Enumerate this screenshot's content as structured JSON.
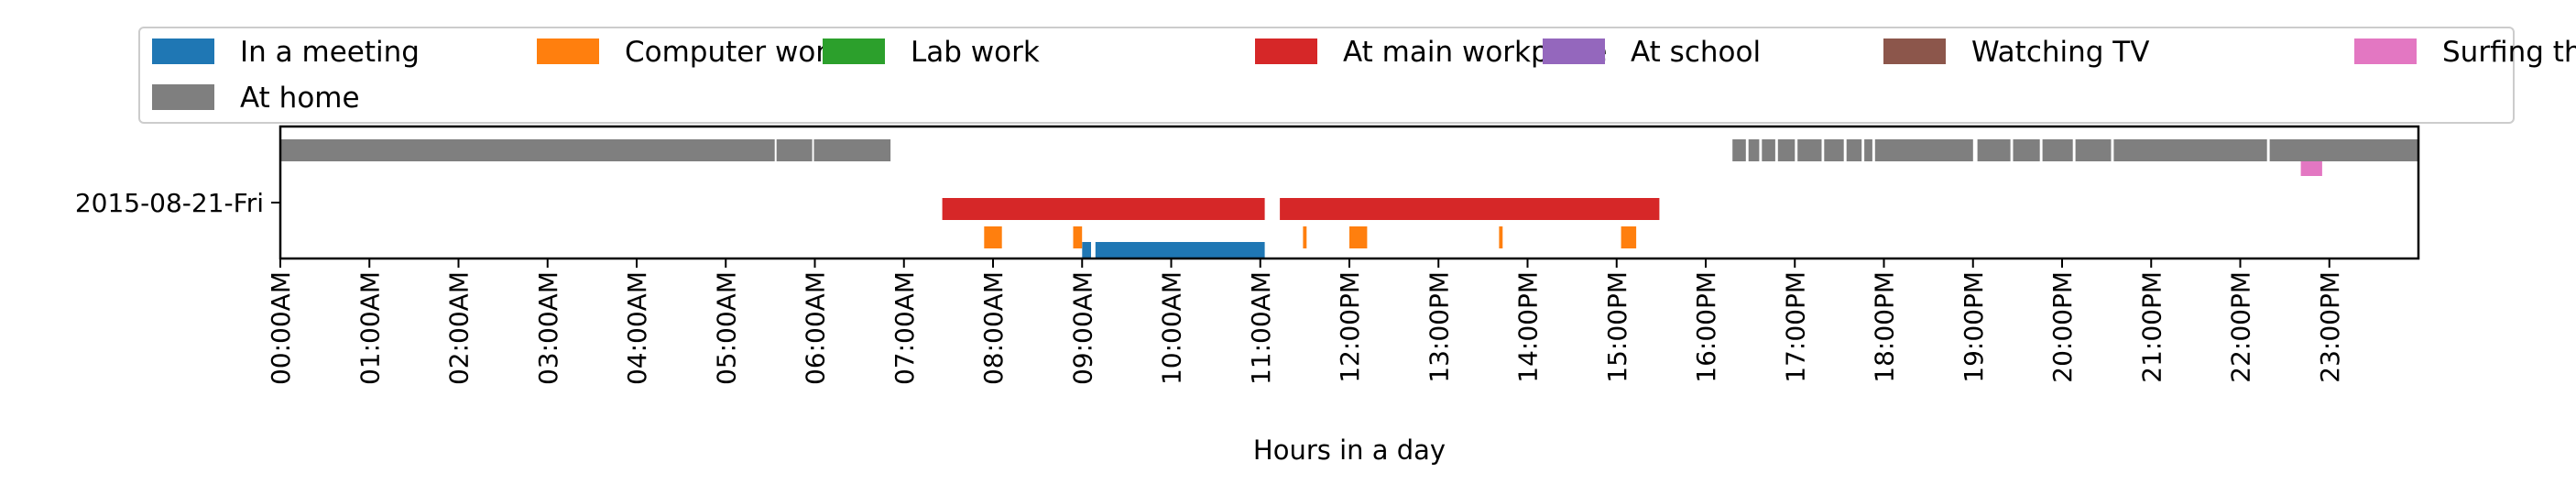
{
  "chart_data": {
    "type": "timeline",
    "title": "",
    "xlabel": "Hours in a day",
    "ylabel": "",
    "x_unit": "hours",
    "xlim": [
      0,
      24
    ],
    "x_tick_labels": [
      "00:00AM",
      "01:00AM",
      "02:00AM",
      "03:00AM",
      "04:00AM",
      "05:00AM",
      "06:00AM",
      "07:00AM",
      "08:00AM",
      "09:00AM",
      "10:00AM",
      "11:00AM",
      "12:00PM",
      "13:00PM",
      "14:00PM",
      "15:00PM",
      "16:00PM",
      "17:00PM",
      "18:00PM",
      "19:00PM",
      "20:00PM",
      "21:00PM",
      "22:00PM",
      "23:00PM"
    ],
    "y_tick_labels": [
      "2015-08-21-Fri"
    ],
    "legend_position": "top",
    "series": [
      {
        "name": "In a meeting",
        "color": "#1f77b4",
        "intervals": [
          [
            9.0,
            9.1
          ],
          [
            9.15,
            11.05
          ]
        ]
      },
      {
        "name": "Computer work",
        "color": "#ff7f0e",
        "intervals": [
          [
            7.9,
            8.1
          ],
          [
            8.9,
            9.0
          ],
          [
            11.48,
            11.52
          ],
          [
            12.0,
            12.2
          ],
          [
            13.68,
            13.72
          ],
          [
            15.05,
            15.22
          ]
        ]
      },
      {
        "name": "Lab work",
        "color": "#2ca02c",
        "intervals": []
      },
      {
        "name": "At main workplace",
        "color": "#d62728",
        "intervals": [
          [
            7.43,
            11.05
          ],
          [
            11.22,
            15.48
          ]
        ]
      },
      {
        "name": "At school",
        "color": "#9467bd",
        "intervals": []
      },
      {
        "name": "Watching TV",
        "color": "#8c564b",
        "intervals": []
      },
      {
        "name": "Surfing the internet",
        "color": "#e377c2",
        "intervals": [
          [
            22.68,
            22.92
          ]
        ]
      },
      {
        "name": "At home",
        "color": "#7f7f7f",
        "intervals": [
          [
            0.0,
            5.55
          ],
          [
            5.57,
            5.97
          ],
          [
            5.99,
            6.85
          ],
          [
            16.3,
            16.45
          ],
          [
            16.48,
            16.6
          ],
          [
            16.63,
            16.78
          ],
          [
            16.81,
            17.0
          ],
          [
            17.03,
            17.3
          ],
          [
            17.33,
            17.55
          ],
          [
            17.58,
            17.75
          ],
          [
            17.78,
            17.87
          ],
          [
            17.9,
            19.0
          ],
          [
            19.05,
            19.42
          ],
          [
            19.45,
            19.75
          ],
          [
            19.78,
            20.12
          ],
          [
            20.15,
            20.55
          ],
          [
            20.58,
            22.3
          ],
          [
            22.33,
            24.0
          ]
        ]
      }
    ]
  }
}
